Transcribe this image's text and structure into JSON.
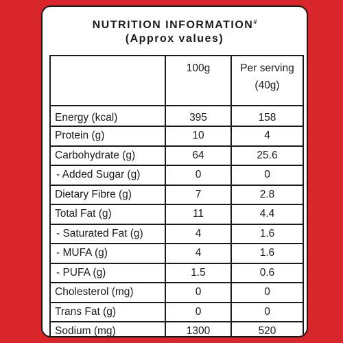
{
  "label": {
    "title": "NUTRITION INFORMATION",
    "title_mark": "#",
    "subtitle": "(Approx values)",
    "columns": {
      "per_100g": "100g",
      "per_serving_line1": "Per serving",
      "per_serving_line2": "(40g)"
    },
    "rows": [
      {
        "name": "Energy (kcal)",
        "per_100g": "395",
        "per_serving": "158"
      },
      {
        "name": "Protein (g)",
        "per_100g": "10",
        "per_serving": "4"
      },
      {
        "name": "Carbohydrate (g)",
        "per_100g": "64",
        "per_serving": "25.6"
      },
      {
        "name": " - Added Sugar (g)",
        "per_100g": "0",
        "per_serving": "0"
      },
      {
        "name": "Dietary Fibre (g)",
        "per_100g": "7",
        "per_serving": "2.8"
      },
      {
        "name": "Total Fat (g)",
        "per_100g": "11",
        "per_serving": "4.4"
      },
      {
        "name": " - Saturated Fat (g)",
        "per_100g": "4",
        "per_serving": "1.6"
      },
      {
        "name": " - MUFA (g)",
        "per_100g": "4",
        "per_serving": "1.6"
      },
      {
        "name": " - PUFA (g)",
        "per_100g": "1.5",
        "per_serving": "0.6"
      },
      {
        "name": "Cholesterol (mg)",
        "per_100g": "0",
        "per_serving": "0"
      },
      {
        "name": "Trans Fat (g)",
        "per_100g": "0",
        "per_serving": "0"
      },
      {
        "name": "Sodium (mg)",
        "per_100g": "1300",
        "per_serving": "520"
      }
    ]
  },
  "colors": {
    "background": "#d8262b",
    "panel": "#ffffff",
    "ink": "#1a1a1a"
  }
}
